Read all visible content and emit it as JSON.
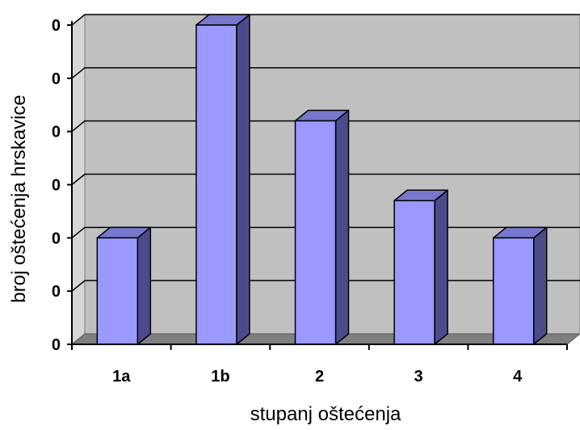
{
  "chart_data": {
    "type": "bar",
    "style": "3d-column",
    "categories": [
      "1a",
      "1b",
      "2",
      "3",
      "4"
    ],
    "values": [
      2,
      6,
      4.2,
      2.7,
      2
    ],
    "ylim": [
      0,
      6
    ],
    "y_tick_labels": [
      "0",
      "0",
      "0",
      "0",
      "0",
      "0",
      "0"
    ],
    "xlabel": "stupanj oštećenja",
    "ylabel": "broj oštećenja hrskavice",
    "grid": true,
    "legend": "none",
    "colors": {
      "bar_front": "#9999ff",
      "bar_side": "#4b4b8c",
      "bar_top": "#7777cc",
      "wall": "#c0c0c0",
      "floor": "#808080",
      "gridline": "#000000"
    }
  }
}
